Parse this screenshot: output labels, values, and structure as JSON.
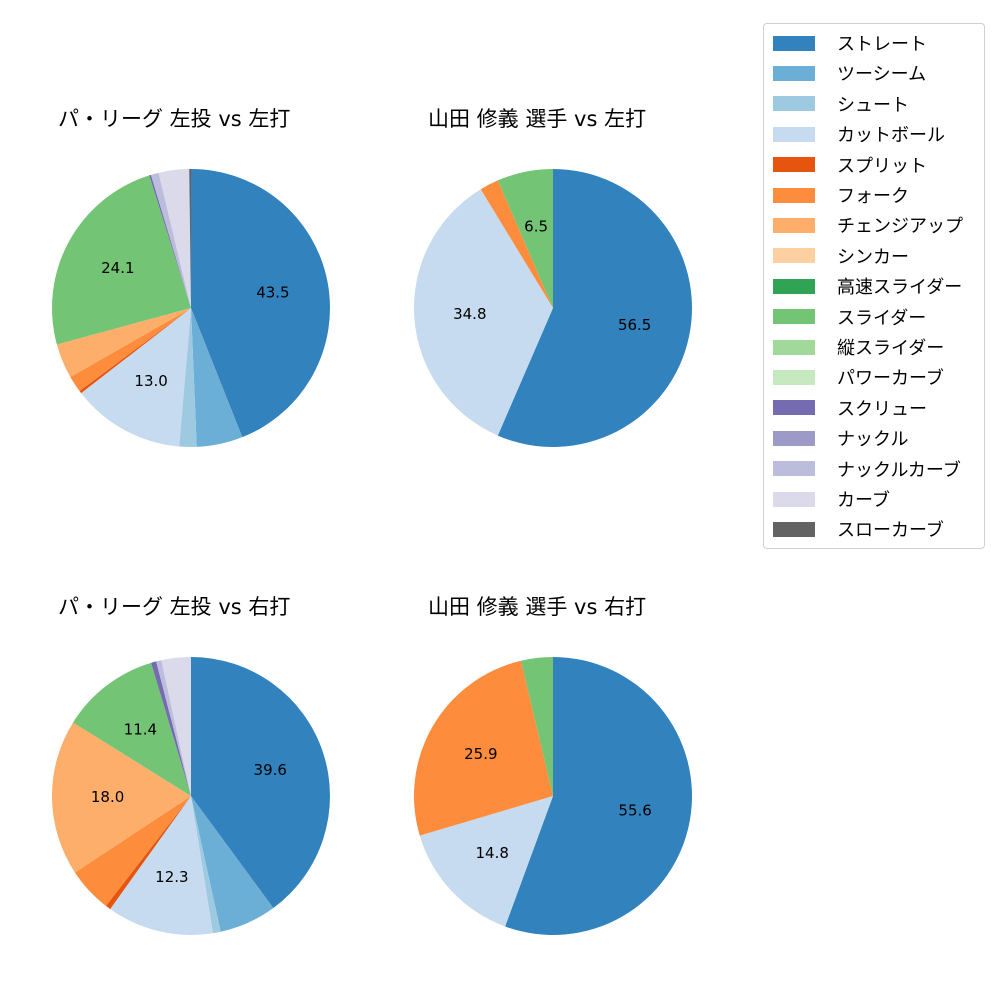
{
  "legend": {
    "items": [
      {
        "label": "ストレート",
        "color": "#3182bd"
      },
      {
        "label": "ツーシーム",
        "color": "#6baed6"
      },
      {
        "label": "シュート",
        "color": "#9ecae1"
      },
      {
        "label": "カットボール",
        "color": "#c6dbef"
      },
      {
        "label": "スプリット",
        "color": "#e6550d"
      },
      {
        "label": "フォーク",
        "color": "#fd8d3c"
      },
      {
        "label": "チェンジアップ",
        "color": "#fdae6b"
      },
      {
        "label": "シンカー",
        "color": "#fdd0a2"
      },
      {
        "label": "高速スライダー",
        "color": "#31a354"
      },
      {
        "label": "スライダー",
        "color": "#74c476"
      },
      {
        "label": "縦スライダー",
        "color": "#a1d99b"
      },
      {
        "label": "パワーカーブ",
        "color": "#c7e9c0"
      },
      {
        "label": "スクリュー",
        "color": "#756bb1"
      },
      {
        "label": "ナックル",
        "color": "#9e9ac8"
      },
      {
        "label": "ナックルカーブ",
        "color": "#bcbddc"
      },
      {
        "label": "カーブ",
        "color": "#dadaeb"
      },
      {
        "label": "スローカーブ",
        "color": "#636363"
      }
    ]
  },
  "chart_data": [
    {
      "type": "pie",
      "title": "パ・リーグ 左投 vs 左打",
      "categories": [
        "ストレート",
        "ツーシーム",
        "シュート",
        "カットボール",
        "スプリット",
        "フォーク",
        "チェンジアップ",
        "スライダー",
        "スクリュー",
        "ナックルカーブ",
        "カーブ",
        "スローカーブ"
      ],
      "values": [
        43.5,
        5.3,
        2.0,
        13.0,
        0.3,
        1.9,
        4.0,
        24.1,
        0.2,
        0.9,
        3.5,
        0.2
      ],
      "labels_shown": [
        "43.5",
        "",
        "",
        "13.0",
        "",
        "",
        "",
        "24.1",
        "",
        "",
        "",
        ""
      ],
      "start_angle": 90,
      "direction": "clockwise"
    },
    {
      "type": "pie",
      "title": "山田 修義 選手 vs 左打",
      "categories": [
        "ストレート",
        "カットボール",
        "フォーク",
        "スライダー"
      ],
      "values": [
        56.5,
        34.8,
        2.2,
        6.5
      ],
      "labels_shown": [
        "56.5",
        "34.8",
        "",
        "6.5"
      ],
      "start_angle": 90,
      "direction": "clockwise"
    },
    {
      "type": "pie",
      "title": "パ・リーグ 左投 vs 右打",
      "categories": [
        "ストレート",
        "ツーシーム",
        "シュート",
        "カットボール",
        "スプリット",
        "フォーク",
        "チェンジアップ",
        "スライダー",
        "スクリュー",
        "ナックルカーブ",
        "カーブ"
      ],
      "values": [
        39.6,
        6.6,
        0.9,
        12.3,
        0.6,
        5.2,
        18.0,
        11.4,
        0.6,
        0.6,
        3.4
      ],
      "labels_shown": [
        "39.6",
        "",
        "",
        "12.3",
        "",
        "",
        "18.0",
        "11.4",
        "",
        "",
        ""
      ],
      "start_angle": 90,
      "direction": "clockwise"
    },
    {
      "type": "pie",
      "title": "山田 修義 選手 vs 右打",
      "categories": [
        "ストレート",
        "カットボール",
        "フォーク",
        "スライダー"
      ],
      "values": [
        55.6,
        14.8,
        25.9,
        3.7
      ],
      "labels_shown": [
        "55.6",
        "14.8",
        "25.9",
        ""
      ],
      "start_angle": 90,
      "direction": "clockwise"
    }
  ]
}
